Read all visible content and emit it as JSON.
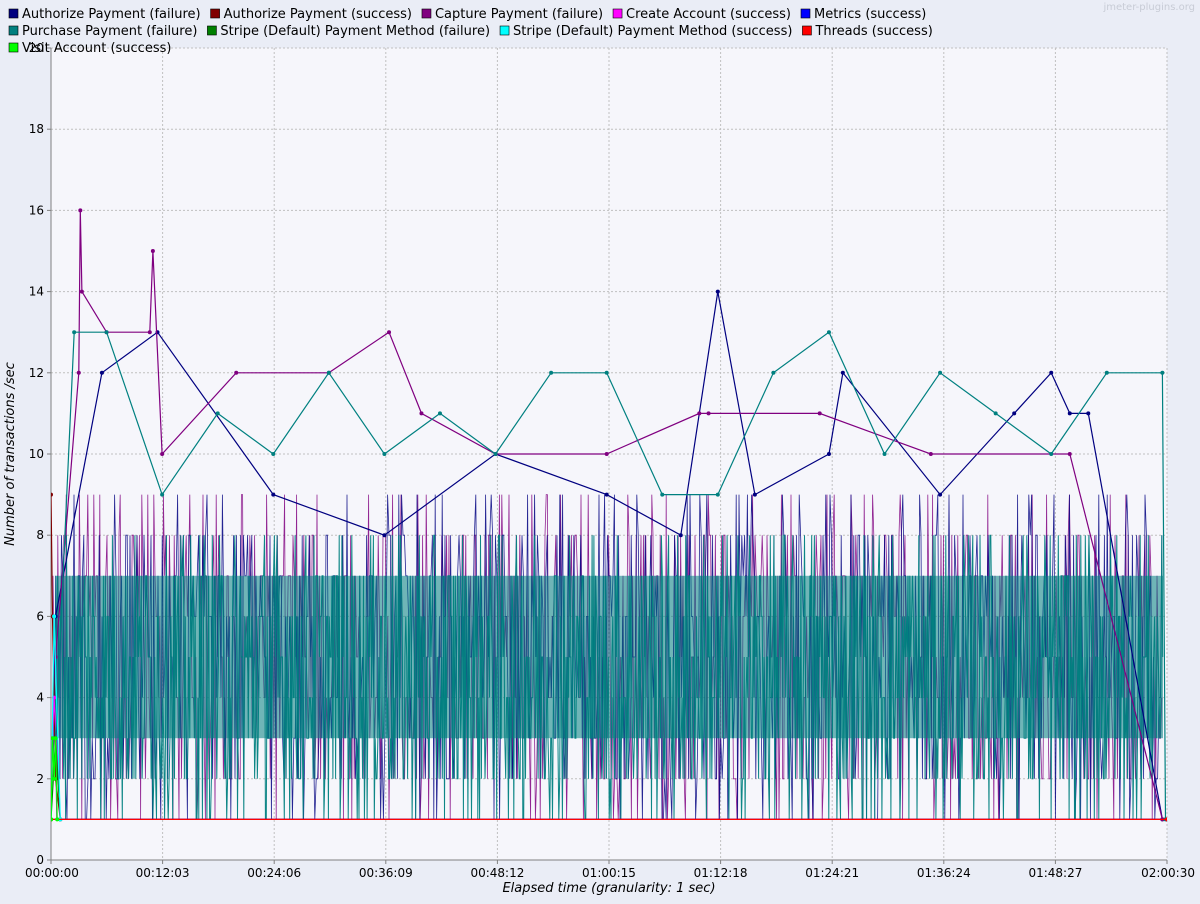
{
  "chart_data": {
    "type": "line",
    "title": "",
    "watermark": "jmeter-plugins.org",
    "xlabel": "Elapsed time (granularity: 1 sec)",
    "ylabel": "Number of transactions /sec",
    "xlim": [
      0,
      7230
    ],
    "ylim": [
      0,
      20
    ],
    "x_ticks": [
      "00:00:00",
      "00:12:03",
      "00:24:06",
      "00:36:09",
      "00:48:12",
      "01:00:15",
      "01:12:18",
      "01:24:21",
      "01:36:24",
      "01:48:27",
      "02:00:30"
    ],
    "y_ticks": [
      0,
      2,
      4,
      6,
      8,
      10,
      12,
      14,
      16,
      18,
      20
    ],
    "grid": true,
    "legend_position": "top",
    "series": [
      {
        "name": "Authorize Payment (failure)",
        "color": "#000080",
        "x": [
          "00:00:30",
          "00:05:30",
          "00:11:30",
          "00:24:00",
          "00:36:00",
          "00:48:00",
          "01:00:00",
          "01:08:00",
          "01:12:00",
          "01:16:00",
          "01:24:00",
          "01:25:30",
          "01:36:00",
          "01:44:00",
          "01:48:00",
          "01:50:00",
          "01:52:00",
          "02:00:00"
        ],
        "values": [
          6,
          12,
          13,
          9,
          8,
          10,
          9,
          8,
          14,
          9,
          10,
          12,
          9,
          11,
          12,
          11,
          11,
          1
        ]
      },
      {
        "name": "Authorize Payment (success)",
        "color": "#800000",
        "x": [
          "00:00:00",
          "00:00:10",
          "00:00:30",
          "00:01:00",
          "02:00:30"
        ],
        "values": [
          9,
          6,
          2,
          1,
          1
        ]
      },
      {
        "name": "Capture Payment (failure)",
        "color": "#800080",
        "x": [
          "00:00:30",
          "00:03:00",
          "00:03:10",
          "00:03:20",
          "00:06:00",
          "00:10:40",
          "00:11:00",
          "00:12:00",
          "00:20:00",
          "00:30:00",
          "00:36:30",
          "00:40:00",
          "00:48:00",
          "01:00:00",
          "01:10:00",
          "01:11:00",
          "01:23:00",
          "01:35:00",
          "01:50:00",
          "02:00:00"
        ],
        "values": [
          5,
          12,
          16,
          14,
          13,
          13,
          15,
          10,
          12,
          12,
          13,
          11,
          10,
          10,
          11,
          11,
          11,
          10,
          10,
          1
        ]
      },
      {
        "name": "Create Account (success)",
        "color": "#ff00ff",
        "x": [
          "00:00:00",
          "00:00:20",
          "00:01:00"
        ],
        "values": [
          2,
          4,
          1
        ]
      },
      {
        "name": "Metrics (success)",
        "color": "#0000ff",
        "x": [
          "00:00:00",
          "02:00:30"
        ],
        "values": [
          1,
          1
        ]
      },
      {
        "name": "Purchase Payment (failure)",
        "color": "#008080",
        "x": [
          "00:00:30",
          "00:02:30",
          "00:06:00",
          "00:12:00",
          "00:18:00",
          "00:24:00",
          "00:30:00",
          "00:36:00",
          "00:42:00",
          "00:48:00",
          "00:54:00",
          "01:00:00",
          "01:06:00",
          "01:12:00",
          "01:18:00",
          "01:24:00",
          "01:30:00",
          "01:36:00",
          "01:42:00",
          "01:48:00",
          "01:54:00",
          "02:00:00",
          "02:00:20"
        ],
        "values": [
          3,
          13,
          13,
          9,
          11,
          10,
          12,
          10,
          11,
          10,
          12,
          12,
          9,
          9,
          12,
          13,
          10,
          12,
          11,
          10,
          12,
          12,
          1
        ]
      },
      {
        "name": "Stripe (Default) Payment Method (failure)",
        "color": "#008000",
        "x": [
          "00:00:00",
          "00:00:30",
          "00:01:00"
        ],
        "values": [
          1,
          3,
          1
        ]
      },
      {
        "name": "Stripe (Default) Payment Method (success)",
        "color": "#00ffff",
        "x": [
          "00:00:00",
          "00:00:20",
          "00:01:00"
        ],
        "values": [
          1,
          6,
          1
        ]
      },
      {
        "name": "Threads (success)",
        "color": "#ff0000",
        "x": [
          "00:00:00",
          "02:00:30"
        ],
        "values": [
          1,
          1
        ]
      },
      {
        "name": "Visit Account (success)",
        "color": "#00ff00",
        "x": [
          "00:00:00",
          "00:00:10",
          "00:00:20",
          "00:00:30",
          "00:00:40"
        ],
        "values": [
          1,
          3,
          2,
          3,
          1
        ]
      }
    ]
  }
}
